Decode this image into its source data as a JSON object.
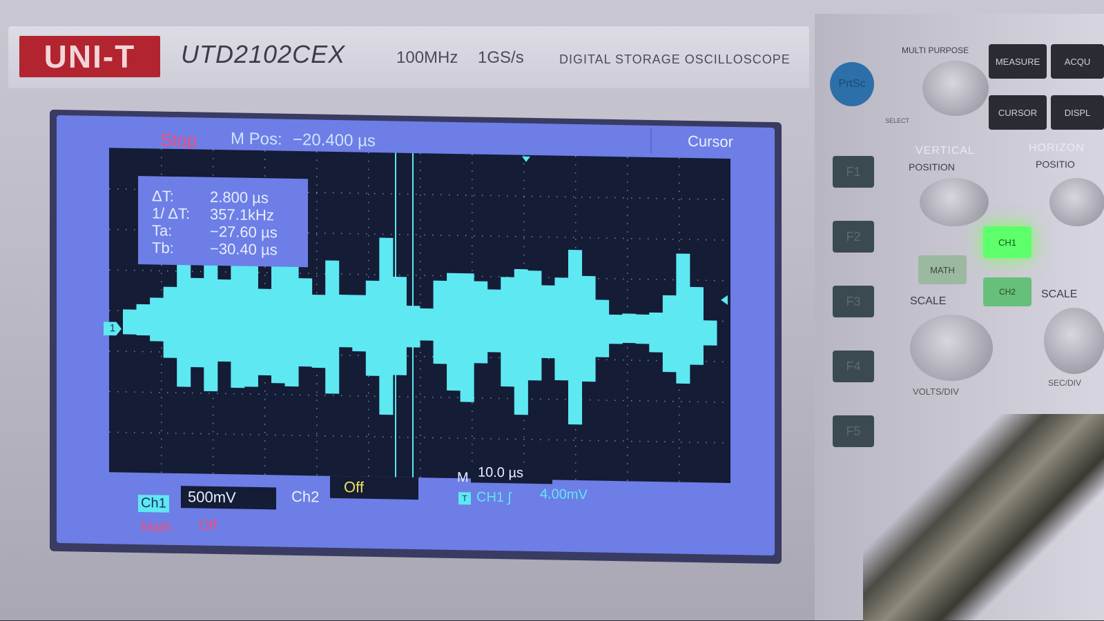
{
  "device": {
    "brand": "UNI-T",
    "model": "UTD2102CEX",
    "bandwidth": "100MHz",
    "sample_rate": "1GS/s",
    "description": "DIGITAL STORAGE OSCILLOSCOPE"
  },
  "screen": {
    "run_state": "Stop",
    "m_pos_label": "M Pos:",
    "m_pos_value": "−20.400 µs",
    "menu_title": "Cursor",
    "cursor_readout": {
      "delta_t_label": "ΔT:",
      "delta_t_value": "2.800 µs",
      "inv_delta_t_label": "1/ ΔT:",
      "inv_delta_t_value": "357.1kHz",
      "ta_label": "Ta:",
      "ta_value": "−27.60 µs",
      "tb_label": "Tb:",
      "tb_value": "−30.40 µs"
    },
    "ch1_marker": "1",
    "ch1_label": "Ch1",
    "ch1_scale": "500mV",
    "ch2_label": "Ch2",
    "ch2_state": "Off",
    "timebase_label": "M",
    "timebase_value": "10.0 µs",
    "trigger_badge": "T",
    "trigger_source": "CH1 ʃ",
    "trigger_level": "4.00mV",
    "math_label": "Math",
    "math_state": "Off"
  },
  "panel": {
    "prtsc_label": "PrtSc",
    "multi_purpose_label": "MULTI PURPOSE",
    "select_label": "SELECT",
    "softkeys": [
      "F1",
      "F2",
      "F3",
      "F4",
      "F5"
    ],
    "measure_label": "MEASURE",
    "acquire_label": "ACQU",
    "cursor_label": "CURSOR",
    "display_label": "DISPL",
    "vertical_label": "VERTICAL",
    "horizontal_label": "HORIZON",
    "vpos_label": "POSITION",
    "hpos_label": "POSITIO",
    "ch1_button": "CH1",
    "math_button": "MATH",
    "ch2_button": "CH2",
    "vscale_label": "SCALE",
    "hscale_label": "SCALE",
    "voltsdiv_label": "VOLTS/DIV",
    "secdiv_label": "SEC/DIV"
  },
  "colors": {
    "trace": "#5ee8f2",
    "screen_bg": "#6d7ee6",
    "plot_bg": "#141c36",
    "stop": "#ef4e7a",
    "brand_red": "#b2242f"
  }
}
